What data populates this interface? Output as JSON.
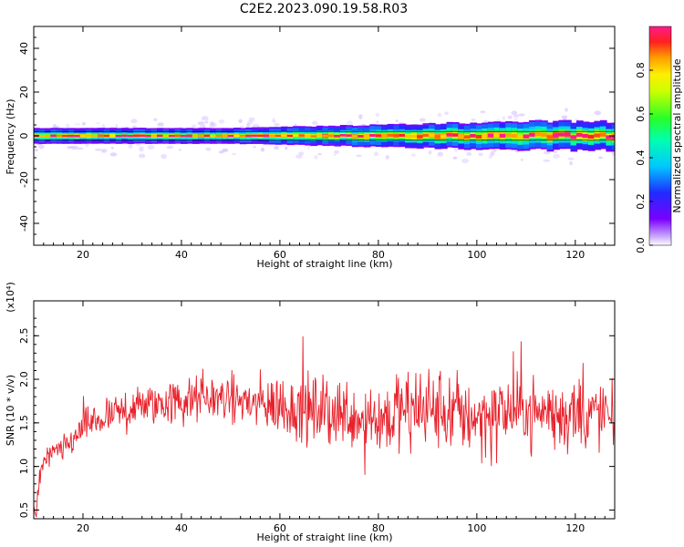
{
  "figure": {
    "title": "C2E2.2023.090.19.58.R03"
  },
  "chart_data": [
    {
      "type": "heatmap",
      "xlabel": "Height of straight line (km)",
      "ylabel": "Frequency (Hz)",
      "xlim": [
        10,
        128
      ],
      "ylim": [
        -50,
        50
      ],
      "xticks": [
        20,
        40,
        60,
        80,
        100,
        120
      ],
      "yticks": [
        -40,
        -20,
        0,
        20,
        40
      ],
      "colorbar": {
        "label": "Normalized spectral amplitude",
        "range": [
          0,
          1
        ],
        "ticks": [
          "0.0",
          "0.2",
          "0.4",
          "0.6",
          "0.8"
        ],
        "colormap": "rainbow (purple to red to magenta)"
      },
      "description_of_field": "Narrow band of high amplitude centered near 0 Hz across all heights, broadening with height",
      "band_center_hz": 0,
      "band_halfwidth_hz": {
        "x": [
          10,
          30,
          50,
          70,
          90,
          110,
          128
        ],
        "values": [
          2,
          2,
          2,
          3,
          4,
          5,
          5
        ]
      }
    },
    {
      "type": "line",
      "xlabel": "Height of straight line (km)",
      "ylabel": "SNR (10 * v/v)",
      "multiplier_label": "(x10⁴)",
      "xlim": [
        10,
        128
      ],
      "ylim": [
        0.4,
        2.9
      ],
      "xticks": [
        20,
        40,
        60,
        80,
        100,
        120
      ],
      "yticks": [
        "0.5",
        "1.0",
        "1.5",
        "2.0",
        "2.5"
      ],
      "color": "#e8202a",
      "series": [
        {
          "x": [
            10,
            10.5,
            11,
            12,
            13,
            14,
            16,
            18,
            20,
            22,
            25,
            28,
            32,
            36,
            40,
            45,
            50,
            55,
            60,
            65,
            70,
            75,
            80,
            85,
            90,
            95,
            100,
            105,
            110,
            115,
            120,
            125,
            128
          ],
          "values": [
            0.55,
            0.45,
            0.8,
            1.05,
            1.1,
            1.15,
            1.2,
            1.3,
            1.45,
            1.5,
            1.55,
            1.62,
            1.7,
            1.72,
            1.75,
            1.78,
            1.8,
            1.72,
            1.7,
            1.65,
            1.62,
            1.6,
            1.55,
            1.62,
            1.65,
            1.6,
            1.58,
            1.62,
            1.65,
            1.6,
            1.62,
            1.6,
            1.55
          ],
          "spread": [
            0.05,
            0.1,
            0.2,
            0.15,
            0.18,
            0.2,
            0.22,
            0.25,
            0.28,
            0.3,
            0.3,
            0.32,
            0.35,
            0.38,
            0.4,
            0.38,
            0.35,
            0.45,
            0.55,
            0.6,
            0.6,
            0.6,
            0.65,
            0.65,
            0.6,
            0.7,
            0.65,
            0.6,
            0.55,
            0.55,
            0.6,
            0.6,
            0.55
          ]
        }
      ]
    }
  ]
}
